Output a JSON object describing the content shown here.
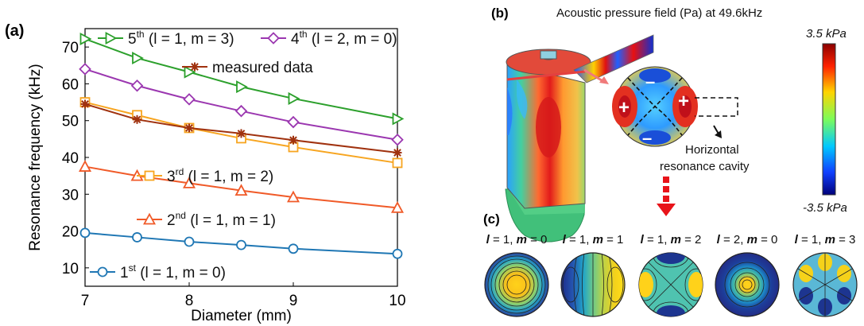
{
  "panel_labels": {
    "a": "(a)",
    "b": "(b)",
    "c": "(c)"
  },
  "chart_data": {
    "type": "line",
    "xlabel": "Diameter (mm)",
    "ylabel": "Resonance frequency (kHz)",
    "xlim": [
      7,
      10
    ],
    "ylim": [
      5,
      75
    ],
    "x_ticks": [
      7,
      8,
      9,
      10
    ],
    "y_ticks": [
      10,
      20,
      30,
      40,
      50,
      60,
      70
    ],
    "x": [
      7,
      7.5,
      8,
      8.5,
      9,
      10
    ],
    "series": [
      {
        "id": "s1",
        "prefix": "1",
        "sup": "st",
        "mode": "(l = 1, m = 0)",
        "l": "1",
        "m": "0",
        "color": "#1f77b4",
        "marker": "circle",
        "values": [
          19.5,
          18.3,
          17.1,
          16.2,
          15.2,
          13.8
        ]
      },
      {
        "id": "s2",
        "prefix": "2",
        "sup": "nd",
        "mode": "(l = 1, m = 1)",
        "l": "1",
        "m": "1",
        "color": "#f05a28",
        "marker": "triangle-up",
        "values": [
          37.5,
          35.0,
          33.0,
          31.0,
          29.2,
          26.3
        ]
      },
      {
        "id": "s3",
        "prefix": "3",
        "sup": "rd",
        "mode": "(l = 1, m = 2)",
        "l": "1",
        "m": "2",
        "color": "#f7a520",
        "marker": "square",
        "values": [
          55.0,
          51.5,
          48.0,
          45.2,
          42.8,
          38.5
        ]
      },
      {
        "id": "s4",
        "prefix": "4",
        "sup": "th",
        "mode": "(l = 2, m = 0)",
        "l": "2",
        "m": "0",
        "color": "#9b37b0",
        "marker": "diamond",
        "values": [
          64.0,
          59.5,
          55.8,
          52.6,
          49.6,
          44.8
        ]
      },
      {
        "id": "s5",
        "prefix": "5",
        "sup": "th",
        "mode": "(l = 1, m = 3)",
        "l": "1",
        "m": "3",
        "color": "#2ca02c",
        "marker": "triangle-right",
        "values": [
          72.2,
          67.0,
          63.2,
          59.2,
          56.0,
          50.5
        ]
      },
      {
        "id": "meas",
        "name": "measured data",
        "color": "#a0320f",
        "marker": "star",
        "values": [
          54.5,
          50.3,
          48.0,
          46.5,
          44.7,
          41.3
        ]
      }
    ]
  },
  "panel_b": {
    "title": "Acoustic pressure field (Pa) at 49.6kHz",
    "colorbar_max": "3.5 kPa",
    "colorbar_min": "-3.5 kPa",
    "cavity_label_line1": "Horizontal",
    "cavity_label_line2": "resonance cavity",
    "plus": "+",
    "minus": "–"
  },
  "panel_c": {
    "modes": [
      {
        "l": "1",
        "m": "0"
      },
      {
        "l": "1",
        "m": "1"
      },
      {
        "l": "1",
        "m": "2"
      },
      {
        "l": "2",
        "m": "0"
      },
      {
        "l": "1",
        "m": "3"
      }
    ]
  }
}
